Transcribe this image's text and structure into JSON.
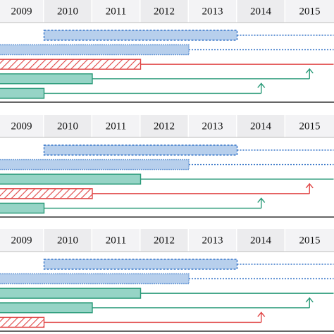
{
  "panels": [
    {
      "years": [
        2009,
        2010,
        2011,
        2012,
        2013,
        2014,
        2015
      ],
      "rows": [
        {
          "kind": "planned",
          "start": 2010,
          "end": 2014,
          "line_end": 2016,
          "arrow": false
        },
        {
          "kind": "blue",
          "start": 2009,
          "end": 2013,
          "line_end": 2016,
          "arrow": false
        },
        {
          "kind": "hatched",
          "start": 2009,
          "end": 2012,
          "line_end": 2016,
          "arrow": false
        },
        {
          "kind": "teal",
          "start": 2009,
          "end": 2011,
          "line_end": 2015.5,
          "arrow": true
        },
        {
          "kind": "teal",
          "start": 2009,
          "end": 2010,
          "line_end": 2014.5,
          "arrow": true
        }
      ]
    },
    {
      "years": [
        2009,
        2010,
        2011,
        2012,
        2013,
        2014,
        2015
      ],
      "rows": [
        {
          "kind": "planned",
          "start": 2010,
          "end": 2014,
          "line_end": 2016,
          "arrow": false
        },
        {
          "kind": "blue",
          "start": 2009,
          "end": 2013,
          "line_end": 2016,
          "arrow": false
        },
        {
          "kind": "teal",
          "start": 2009,
          "end": 2012,
          "line_end": 2016,
          "arrow": false
        },
        {
          "kind": "hatched",
          "start": 2009,
          "end": 2011,
          "line_end": 2015.5,
          "arrow": true
        },
        {
          "kind": "teal",
          "start": 2009,
          "end": 2010,
          "line_end": 2014.5,
          "arrow": true
        }
      ]
    },
    {
      "years": [
        2009,
        2010,
        2011,
        2012,
        2013,
        2014,
        2015
      ],
      "rows": [
        {
          "kind": "planned",
          "start": 2010,
          "end": 2014,
          "line_end": 2016,
          "arrow": false
        },
        {
          "kind": "blue",
          "start": 2009,
          "end": 2013,
          "line_end": 2016,
          "arrow": false
        },
        {
          "kind": "teal",
          "start": 2009,
          "end": 2012,
          "line_end": 2016,
          "arrow": false
        },
        {
          "kind": "teal",
          "start": 2009,
          "end": 2011,
          "line_end": 2015.5,
          "arrow": true
        },
        {
          "kind": "hatched",
          "start": 2009,
          "end": 2010,
          "line_end": 2014.5,
          "arrow": true
        }
      ]
    }
  ]
}
